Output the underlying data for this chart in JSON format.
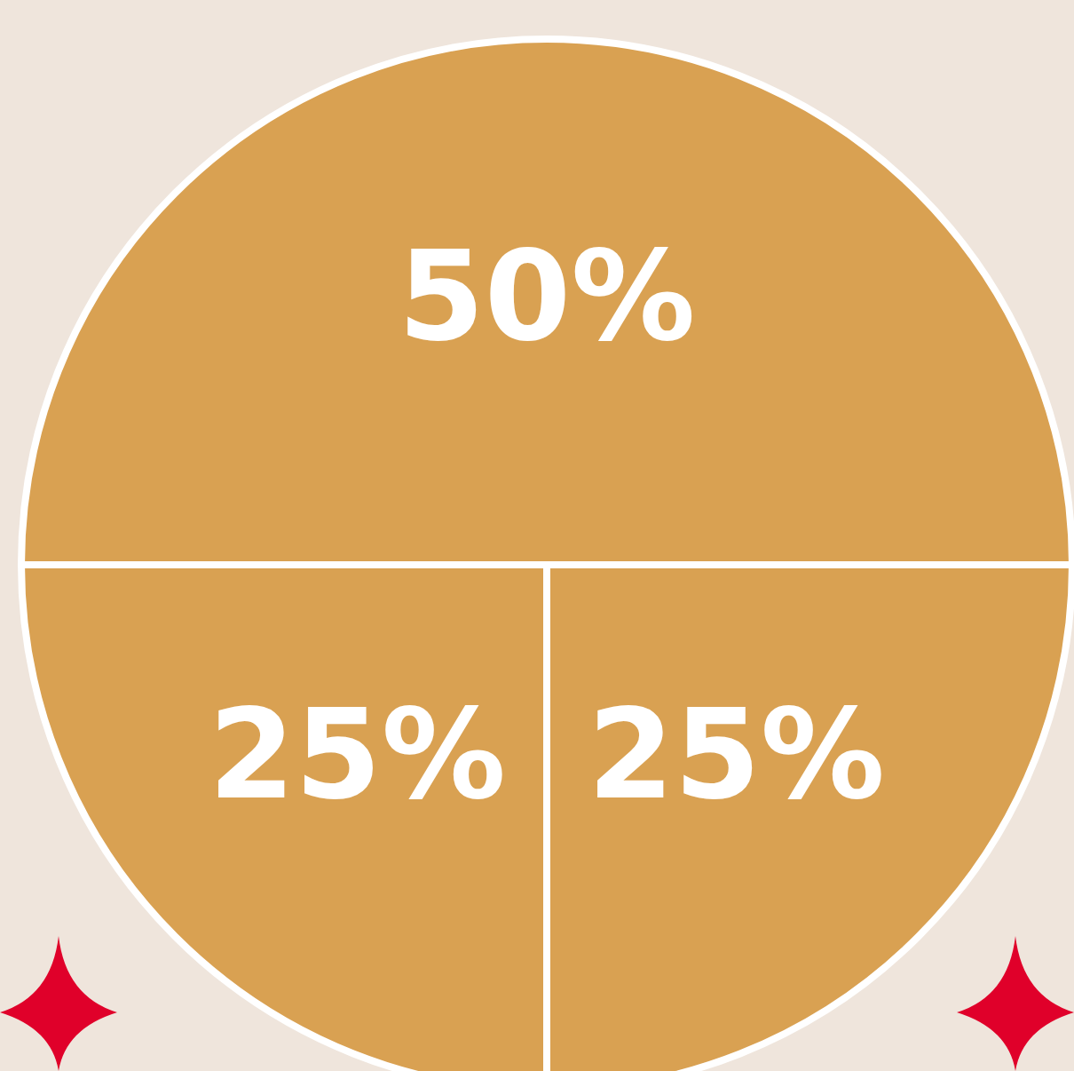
{
  "chart_data": {
    "type": "pie",
    "categories": [
      null,
      null,
      null
    ],
    "values": [
      50,
      25,
      25
    ],
    "colors": [
      "#d9a152",
      "#d9a152",
      "#d9a152"
    ],
    "value_labels": [
      "50%",
      "25%",
      "25%"
    ]
  }
}
